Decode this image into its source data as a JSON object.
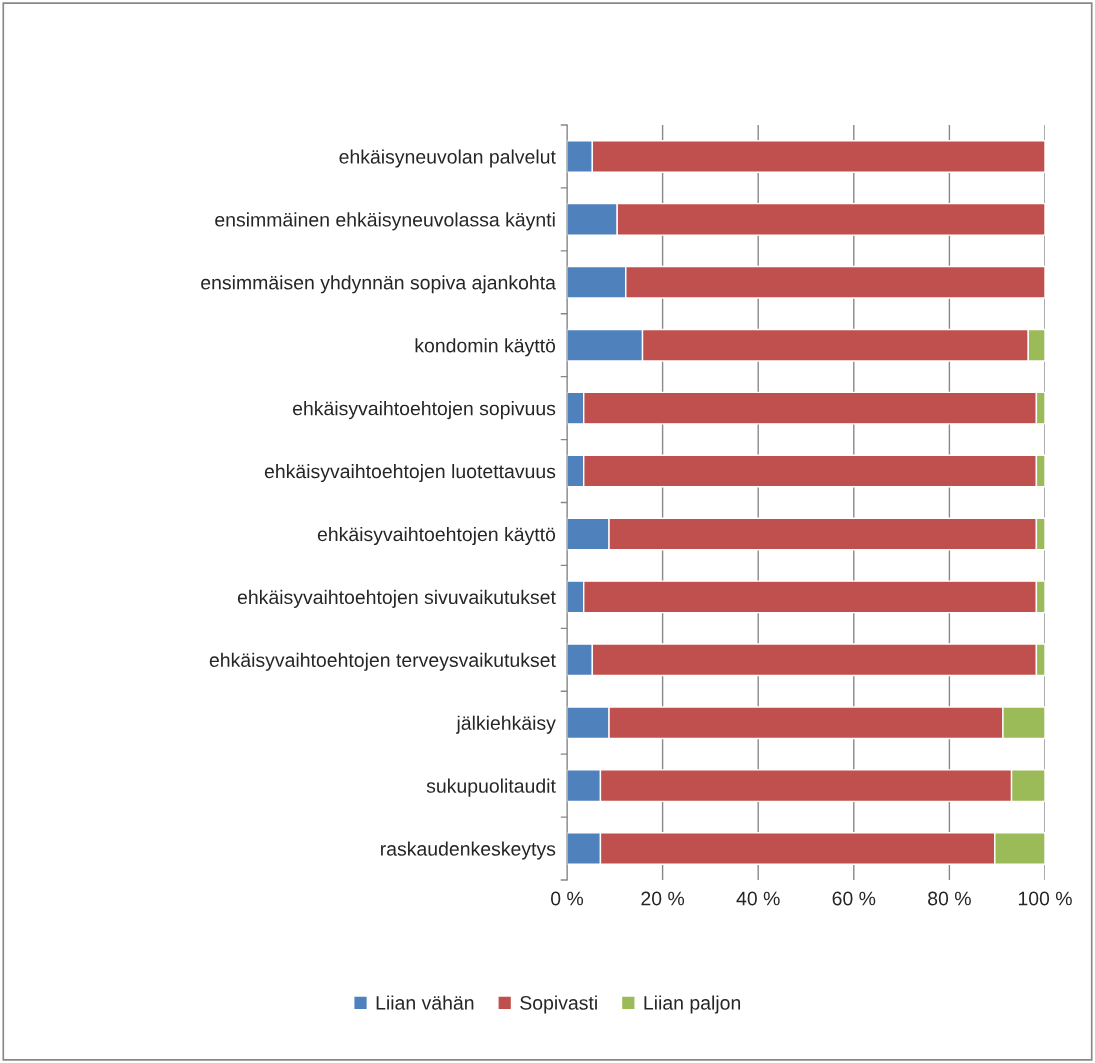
{
  "chart_data": {
    "type": "bar",
    "orientation": "horizontal",
    "stacked": true,
    "categories": [
      "ehkäisyneuvolan palvelut",
      "ensimmäinen ehkäisyneuvolassa käynti",
      "ensimmäisen yhdynnän sopiva ajankohta",
      "kondomin käyttö",
      "ehkäisyvaihtoehtojen sopivuus",
      "ehkäisyvaihtoehtojen luotettavuus",
      "ehkäisyvaihtoehtojen käyttö",
      "ehkäisyvaihtoehtojen sivuvaikutukset",
      "ehkäisyvaihtoehtojen terveysvaikutukset",
      "jälkiehkäisy",
      "sukupuolitaudit",
      "raskaudenkeskeytys"
    ],
    "series": [
      {
        "name": "Liian vähän",
        "color": "#4f81bd",
        "values": [
          5.3,
          10.5,
          12.3,
          15.8,
          3.5,
          3.5,
          8.8,
          3.5,
          5.3,
          8.8,
          7.0,
          7.0
        ]
      },
      {
        "name": "Sopivasti",
        "color": "#c0504d",
        "values": [
          94.7,
          89.5,
          87.7,
          80.7,
          94.7,
          94.7,
          89.4,
          94.7,
          92.9,
          82.4,
          86.0,
          82.5
        ]
      },
      {
        "name": "Liian paljon",
        "color": "#9bbb59",
        "values": [
          null,
          null,
          null,
          3.5,
          1.8,
          1.8,
          1.8,
          1.8,
          1.8,
          8.8,
          7.0,
          10.5
        ]
      }
    ],
    "xlim": [
      0,
      100
    ],
    "xticks": [
      {
        "value": 0,
        "label": "0 %"
      },
      {
        "value": 20,
        "label": "20 %"
      },
      {
        "value": 40,
        "label": "40 %"
      },
      {
        "value": 60,
        "label": "60 %"
      },
      {
        "value": 80,
        "label": "80 %"
      },
      {
        "value": 100,
        "label": "100 %"
      }
    ],
    "grid": "x",
    "legend": "bottom"
  }
}
